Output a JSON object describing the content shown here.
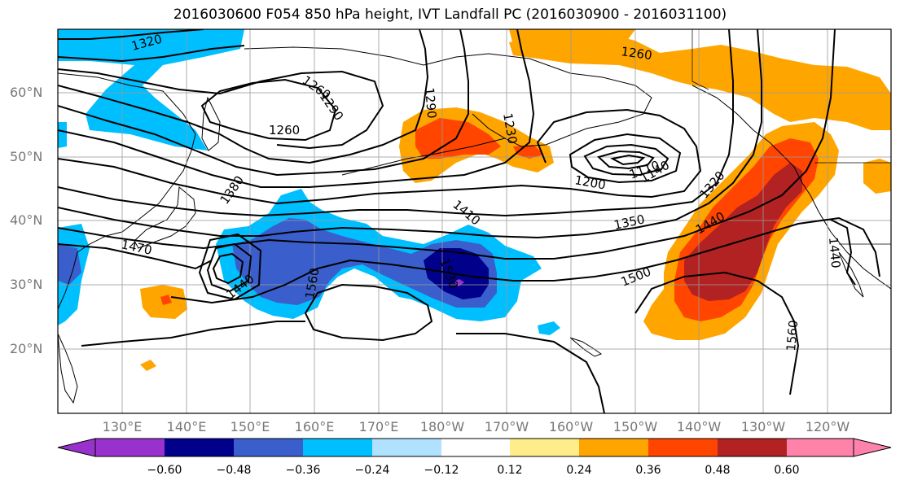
{
  "title": "2016030600 F054 850 hPa height, IVT Landfall PC (2016030900 - 2016031100)",
  "lat_labels": [
    "60°N",
    "50°N",
    "40°N",
    "30°N",
    "20°N"
  ],
  "lon_labels": [
    "130°E",
    "140°E",
    "150°E",
    "160°E",
    "170°E",
    "180°W",
    "170°W",
    "160°W",
    "150°W",
    "140°W",
    "130°W",
    "120°W"
  ],
  "contour_labels": [
    "1320",
    "1260",
    "1290",
    "1260",
    "1290",
    "1230",
    "1260",
    "1200",
    "1110",
    "1140",
    "1380",
    "1410",
    "1350",
    "1320",
    "1440",
    "1470",
    "1440",
    "1560",
    "1530",
    "1500",
    "1560",
    "1440"
  ],
  "colorbar": {
    "ticks": [
      "−0.60",
      "−0.48",
      "−0.36",
      "−0.24",
      "−0.12",
      "0.12",
      "0.24",
      "0.36",
      "0.48",
      "0.60"
    ],
    "colors": [
      "#9932cc",
      "#00008b",
      "#3a5fcd",
      "#00bfff",
      "#b0e2ff",
      "#ffffff",
      "#ffec8b",
      "#ffa500",
      "#ff4500",
      "#b22222",
      "#ff82ab"
    ]
  },
  "shading_colors": {
    "neg_light": "#00bfff",
    "neg_mid": "#3a5fcd",
    "neg_dark": "#00008b",
    "neg_min": "#9932cc",
    "pos_light": "#ffa500",
    "pos_mid": "#ff4500",
    "pos_dark": "#b22222"
  }
}
